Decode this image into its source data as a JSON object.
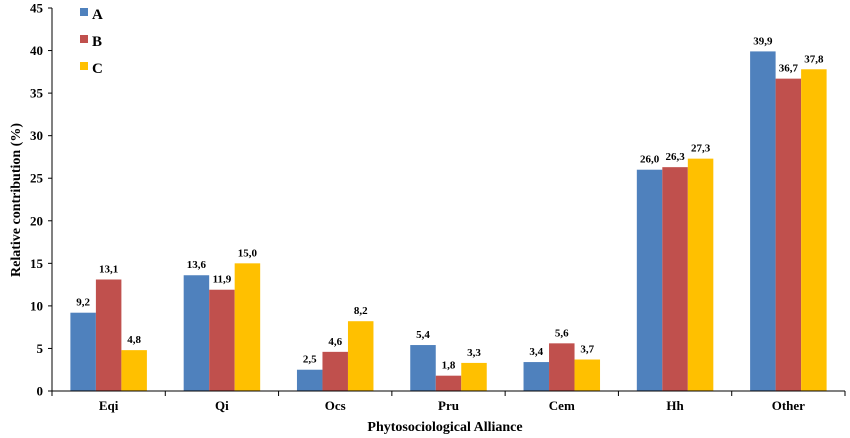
{
  "chart_data": {
    "type": "bar",
    "title": "",
    "xlabel": "Phytosociological Alliance",
    "ylabel": "Relative contribution (%)",
    "ylim": [
      0,
      45
    ],
    "yticks": [
      0,
      5,
      10,
      15,
      20,
      25,
      30,
      35,
      40,
      45
    ],
    "ytick_labels": [
      "0",
      "5",
      "10",
      "15",
      "20",
      "25",
      "30",
      "35",
      "40",
      "45"
    ],
    "categories": [
      "Eqi",
      "Qi",
      "Ocs",
      "Pru",
      "Cem",
      "Hh",
      "Other"
    ],
    "legend_position": "top-left",
    "grid": false,
    "series": [
      {
        "name": "A",
        "color": "#4f81bd",
        "values": [
          9.2,
          13.6,
          2.5,
          5.4,
          3.4,
          26.0,
          39.9
        ],
        "labels": [
          "9,2",
          "13,6",
          "2,5",
          "5,4",
          "3,4",
          "26,0",
          "39,9"
        ]
      },
      {
        "name": "B",
        "color": "#c0504d",
        "values": [
          13.1,
          11.9,
          4.6,
          1.8,
          5.6,
          26.3,
          36.7
        ],
        "labels": [
          "13,1",
          "11,9",
          "4,6",
          "1,8",
          "5,6",
          "26,3",
          "36,7"
        ]
      },
      {
        "name": "C",
        "color": "#ffc000",
        "values": [
          4.8,
          15.0,
          8.2,
          3.3,
          3.7,
          27.3,
          37.8
        ],
        "labels": [
          "4,8",
          "15,0",
          "8,2",
          "3,3",
          "3,7",
          "27,3",
          "37,8"
        ]
      }
    ]
  }
}
